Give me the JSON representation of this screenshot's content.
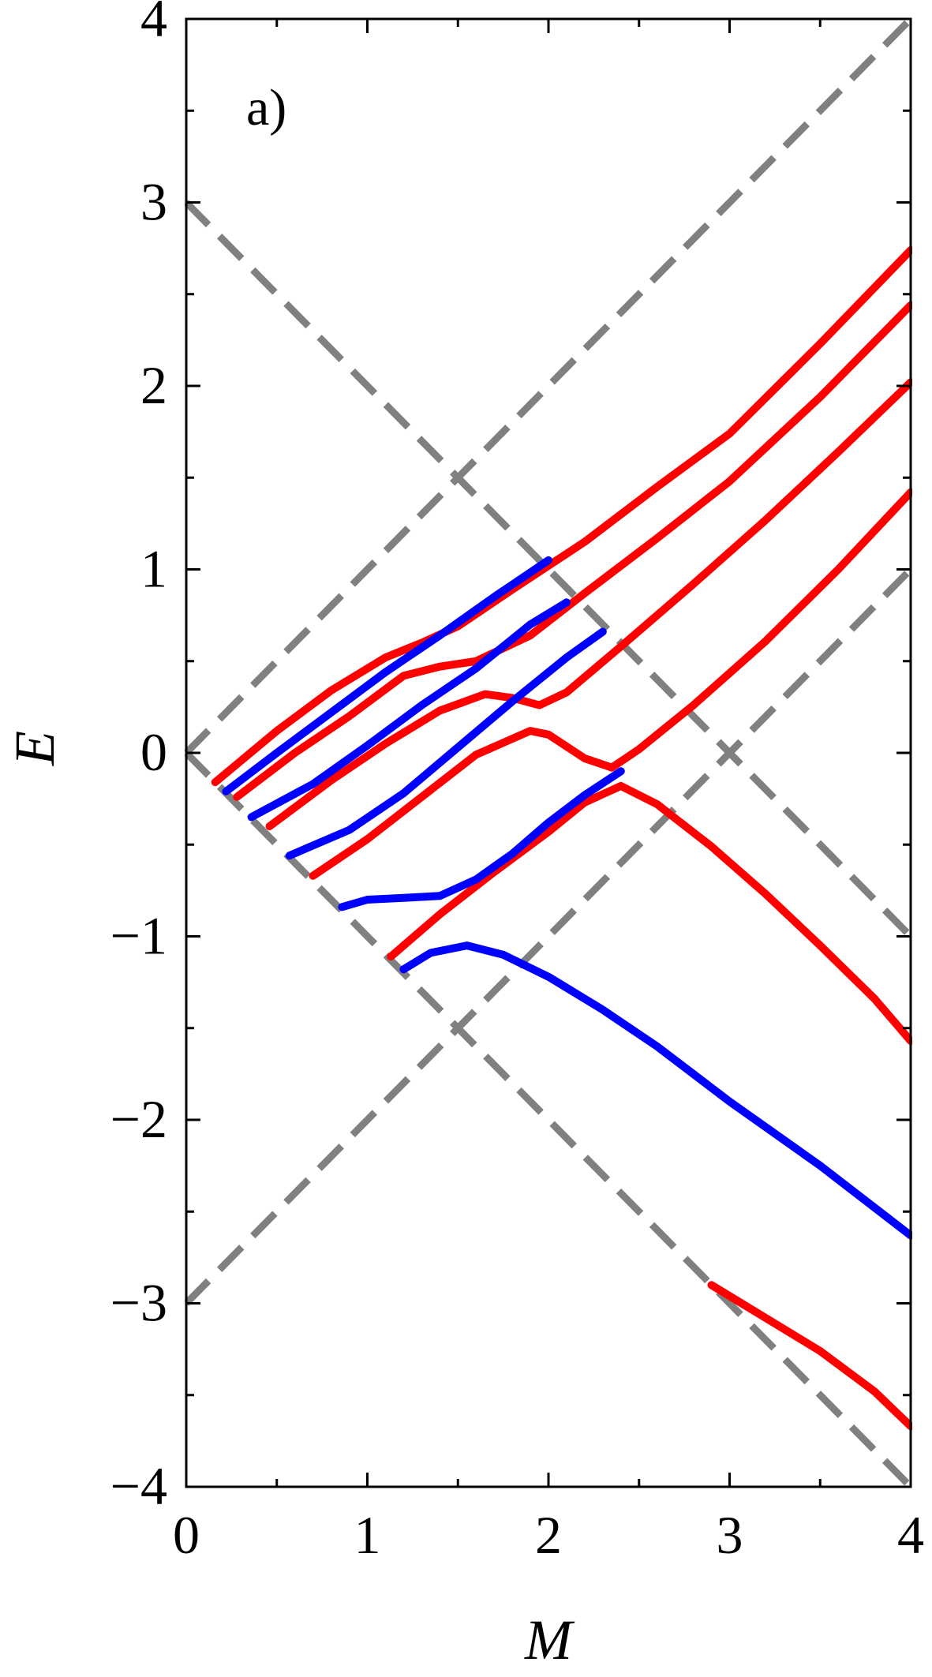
{
  "chart_data": {
    "type": "line",
    "panel_label": "a)",
    "xlabel": "M",
    "ylabel": "E",
    "xlim": [
      0,
      4
    ],
    "ylim": [
      -4,
      4
    ],
    "xticks": [
      0,
      1,
      2,
      3,
      4
    ],
    "yticks": [
      -4,
      -3,
      -2,
      -1,
      0,
      1,
      2,
      3,
      4
    ],
    "x_tick_labels": [
      "0",
      "1",
      "2",
      "3",
      "4"
    ],
    "y_tick_labels": [
      "−4",
      "−3",
      "−2",
      "−1",
      "0",
      "1",
      "2",
      "3",
      "4"
    ],
    "minor_ticks": true,
    "grid": false,
    "colors": {
      "blue": "#0000ff",
      "red": "#ff0000",
      "dashed": "#808080"
    },
    "series": [
      {
        "color": "red",
        "points": [
          [
            0.16,
            -0.16
          ],
          [
            0.5,
            0.12
          ],
          [
            0.8,
            0.34
          ],
          [
            1.1,
            0.52
          ],
          [
            1.3,
            0.6
          ],
          [
            1.5,
            0.69
          ],
          [
            1.8,
            0.89
          ],
          [
            2.2,
            1.15
          ],
          [
            2.6,
            1.45
          ],
          [
            3.0,
            1.74
          ],
          [
            3.5,
            2.23
          ],
          [
            4.0,
            2.74
          ]
        ]
      },
      {
        "color": "red",
        "points": [
          [
            0.28,
            -0.24
          ],
          [
            0.6,
            0.0
          ],
          [
            0.9,
            0.2
          ],
          [
            1.2,
            0.42
          ],
          [
            1.4,
            0.47
          ],
          [
            1.6,
            0.5
          ],
          [
            1.9,
            0.64
          ],
          [
            2.2,
            0.87
          ],
          [
            2.6,
            1.17
          ],
          [
            3.0,
            1.48
          ],
          [
            3.5,
            1.94
          ],
          [
            4.0,
            2.44
          ]
        ]
      },
      {
        "color": "red",
        "points": [
          [
            0.46,
            -0.4
          ],
          [
            0.8,
            -0.15
          ],
          [
            1.1,
            0.05
          ],
          [
            1.4,
            0.23
          ],
          [
            1.65,
            0.32
          ],
          [
            1.8,
            0.3
          ],
          [
            1.95,
            0.26
          ],
          [
            2.1,
            0.33
          ],
          [
            2.4,
            0.58
          ],
          [
            2.8,
            0.92
          ],
          [
            3.2,
            1.27
          ],
          [
            3.6,
            1.64
          ],
          [
            4.0,
            2.02
          ]
        ]
      },
      {
        "color": "red",
        "points": [
          [
            0.7,
            -0.67
          ],
          [
            1.0,
            -0.47
          ],
          [
            1.3,
            -0.24
          ],
          [
            1.6,
            -0.01
          ],
          [
            1.9,
            0.12
          ],
          [
            2.0,
            0.1
          ],
          [
            2.2,
            -0.03
          ],
          [
            2.35,
            -0.08
          ],
          [
            2.5,
            0.02
          ],
          [
            2.8,
            0.26
          ],
          [
            3.2,
            0.61
          ],
          [
            3.6,
            1.0
          ],
          [
            4.0,
            1.42
          ]
        ]
      },
      {
        "color": "red",
        "points": [
          [
            1.13,
            -1.11
          ],
          [
            1.4,
            -0.88
          ],
          [
            1.7,
            -0.65
          ],
          [
            2.0,
            -0.43
          ],
          [
            2.2,
            -0.27
          ],
          [
            2.4,
            -0.18
          ],
          [
            2.6,
            -0.28
          ],
          [
            2.9,
            -0.51
          ],
          [
            3.2,
            -0.77
          ],
          [
            3.5,
            -1.05
          ],
          [
            3.8,
            -1.34
          ],
          [
            4.0,
            -1.57
          ]
        ]
      },
      {
        "color": "red",
        "points": [
          [
            2.9,
            -2.9
          ],
          [
            3.2,
            -3.08
          ],
          [
            3.5,
            -3.26
          ],
          [
            3.8,
            -3.48
          ],
          [
            4.0,
            -3.67
          ]
        ]
      },
      {
        "color": "blue",
        "points": [
          [
            0.22,
            -0.21
          ],
          [
            0.5,
            0.0
          ],
          [
            0.8,
            0.22
          ],
          [
            1.1,
            0.44
          ],
          [
            1.4,
            0.64
          ],
          [
            1.7,
            0.85
          ],
          [
            2.0,
            1.05
          ]
        ]
      },
      {
        "color": "blue",
        "points": [
          [
            0.36,
            -0.35
          ],
          [
            0.7,
            -0.17
          ],
          [
            1.0,
            0.04
          ],
          [
            1.3,
            0.26
          ],
          [
            1.6,
            0.46
          ],
          [
            1.9,
            0.7
          ],
          [
            2.1,
            0.82
          ]
        ]
      },
      {
        "color": "blue",
        "points": [
          [
            0.57,
            -0.56
          ],
          [
            0.9,
            -0.42
          ],
          [
            1.2,
            -0.22
          ],
          [
            1.5,
            0.03
          ],
          [
            1.8,
            0.28
          ],
          [
            2.1,
            0.52
          ],
          [
            2.3,
            0.66
          ]
        ]
      },
      {
        "color": "blue",
        "points": [
          [
            0.86,
            -0.84
          ],
          [
            1.0,
            -0.8
          ],
          [
            1.2,
            -0.79
          ],
          [
            1.4,
            -0.78
          ],
          [
            1.6,
            -0.69
          ],
          [
            1.8,
            -0.55
          ],
          [
            2.0,
            -0.38
          ],
          [
            2.2,
            -0.23
          ],
          [
            2.4,
            -0.1
          ]
        ]
      },
      {
        "color": "blue",
        "points": [
          [
            1.2,
            -1.18
          ],
          [
            1.35,
            -1.09
          ],
          [
            1.55,
            -1.05
          ],
          [
            1.75,
            -1.1
          ],
          [
            2.0,
            -1.22
          ],
          [
            2.3,
            -1.4
          ],
          [
            2.6,
            -1.6
          ],
          [
            3.0,
            -1.9
          ],
          [
            3.5,
            -2.25
          ],
          [
            4.0,
            -2.63
          ]
        ]
      }
    ],
    "reference_lines": [
      {
        "style": "dashed",
        "color": "dashed",
        "points": [
          [
            0,
            0
          ],
          [
            4,
            4
          ]
        ]
      },
      {
        "style": "dashed",
        "color": "dashed",
        "points": [
          [
            0,
            0
          ],
          [
            4,
            -4
          ]
        ]
      },
      {
        "style": "dashed",
        "color": "dashed",
        "points": [
          [
            0,
            3
          ],
          [
            4,
            -1
          ]
        ]
      },
      {
        "style": "dashed",
        "color": "dashed",
        "points": [
          [
            0,
            -3
          ],
          [
            4,
            1
          ]
        ]
      }
    ]
  }
}
